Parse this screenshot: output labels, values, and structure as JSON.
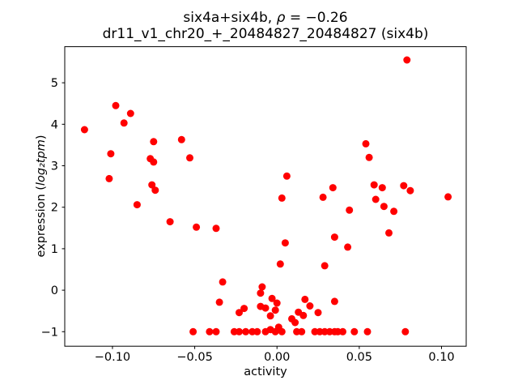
{
  "chart_data": {
    "type": "scatter",
    "title": "six4a+six4b, ρ = −0.26",
    "title_parts": [
      "six4a+six4b, ",
      "ρ",
      " = −0.26"
    ],
    "subtitle": "dr11_v1_chr20_+_20484827_20484827 (six4b)",
    "xlabel": "activity",
    "ylabel": "expression (log₂tpm)",
    "ylabel_parts": [
      "expression (",
      "log₂tpm",
      ")"
    ],
    "marker_color": "#ff0000",
    "marker_radius": 4.5,
    "background_color": "#ffffff",
    "spine_color": "#000000",
    "xlim": [
      -0.129,
      0.115
    ],
    "ylim": [
      -1.35,
      5.87
    ],
    "xticks": [
      {
        "v": -0.1,
        "label": "−0.10"
      },
      {
        "v": -0.05,
        "label": "−0.05"
      },
      {
        "v": 0.0,
        "label": "0.00"
      },
      {
        "v": 0.05,
        "label": "0.05"
      },
      {
        "v": 0.1,
        "label": "0.10"
      }
    ],
    "yticks": [
      {
        "v": -1,
        "label": "−1"
      },
      {
        "v": 0,
        "label": "0"
      },
      {
        "v": 1,
        "label": "1"
      },
      {
        "v": 2,
        "label": "2"
      },
      {
        "v": 3,
        "label": "3"
      },
      {
        "v": 4,
        "label": "4"
      },
      {
        "v": 5,
        "label": "5"
      }
    ],
    "points": [
      [
        -0.117,
        3.87
      ],
      [
        -0.098,
        4.45
      ],
      [
        -0.089,
        4.26
      ],
      [
        -0.093,
        4.03
      ],
      [
        -0.101,
        3.29
      ],
      [
        -0.102,
        2.69
      ],
      [
        -0.075,
        3.58
      ],
      [
        -0.058,
        3.63
      ],
      [
        -0.077,
        3.17
      ],
      [
        -0.075,
        3.09
      ],
      [
        -0.053,
        3.19
      ],
      [
        -0.076,
        2.54
      ],
      [
        -0.074,
        2.41
      ],
      [
        -0.085,
        2.06
      ],
      [
        -0.065,
        1.65
      ],
      [
        -0.049,
        1.52
      ],
      [
        -0.037,
        1.49
      ],
      [
        -0.033,
        0.2
      ],
      [
        -0.035,
        -0.29
      ],
      [
        -0.023,
        -0.54
      ],
      [
        -0.02,
        -0.44
      ],
      [
        -0.009,
        0.08
      ],
      [
        -0.01,
        -0.07
      ],
      [
        -0.003,
        -0.2
      ],
      [
        0.0,
        -0.31
      ],
      [
        -0.01,
        -0.39
      ],
      [
        -0.007,
        -0.43
      ],
      [
        -0.001,
        -0.48
      ],
      [
        -0.004,
        -0.62
      ],
      [
        0.005,
        1.14
      ],
      [
        0.002,
        0.63
      ],
      [
        0.029,
        0.59
      ],
      [
        0.006,
        2.75
      ],
      [
        0.003,
        2.22
      ],
      [
        0.028,
        2.24
      ],
      [
        0.034,
        2.47
      ],
      [
        0.009,
        -0.69
      ],
      [
        0.011,
        -0.78
      ],
      [
        0.013,
        -0.53
      ],
      [
        0.016,
        -0.61
      ],
      [
        0.017,
        -0.22
      ],
      [
        0.02,
        -0.38
      ],
      [
        0.025,
        -0.54
      ],
      [
        0.035,
        -0.27
      ],
      [
        0.035,
        1.28
      ],
      [
        0.043,
        1.04
      ],
      [
        0.044,
        1.93
      ],
      [
        0.068,
        1.38
      ],
      [
        0.054,
        3.53
      ],
      [
        0.056,
        3.2
      ],
      [
        0.059,
        2.54
      ],
      [
        0.064,
        2.47
      ],
      [
        0.06,
        2.19
      ],
      [
        0.065,
        2.02
      ],
      [
        0.071,
        1.9
      ],
      [
        0.077,
        2.52
      ],
      [
        0.081,
        2.4
      ],
      [
        0.079,
        5.55
      ],
      [
        0.104,
        2.25
      ],
      [
        -0.051,
        -1.0
      ],
      [
        -0.041,
        -1.0
      ],
      [
        -0.037,
        -1.0
      ],
      [
        -0.026,
        -1.0
      ],
      [
        -0.023,
        -1.0
      ],
      [
        -0.019,
        -1.0
      ],
      [
        -0.015,
        -1.0
      ],
      [
        -0.012,
        -1.0
      ],
      [
        -0.007,
        -1.0
      ],
      [
        -0.004,
        -0.95
      ],
      [
        -0.001,
        -1.0
      ],
      [
        0.001,
        -0.89
      ],
      [
        0.003,
        -1.0
      ],
      [
        0.012,
        -1.0
      ],
      [
        0.015,
        -1.0
      ],
      [
        0.023,
        -1.0
      ],
      [
        0.026,
        -1.0
      ],
      [
        0.029,
        -1.0
      ],
      [
        0.032,
        -1.0
      ],
      [
        0.035,
        -1.0
      ],
      [
        0.037,
        -1.0
      ],
      [
        0.04,
        -1.0
      ],
      [
        0.047,
        -1.0
      ],
      [
        0.055,
        -1.0
      ],
      [
        0.078,
        -1.0
      ]
    ]
  }
}
